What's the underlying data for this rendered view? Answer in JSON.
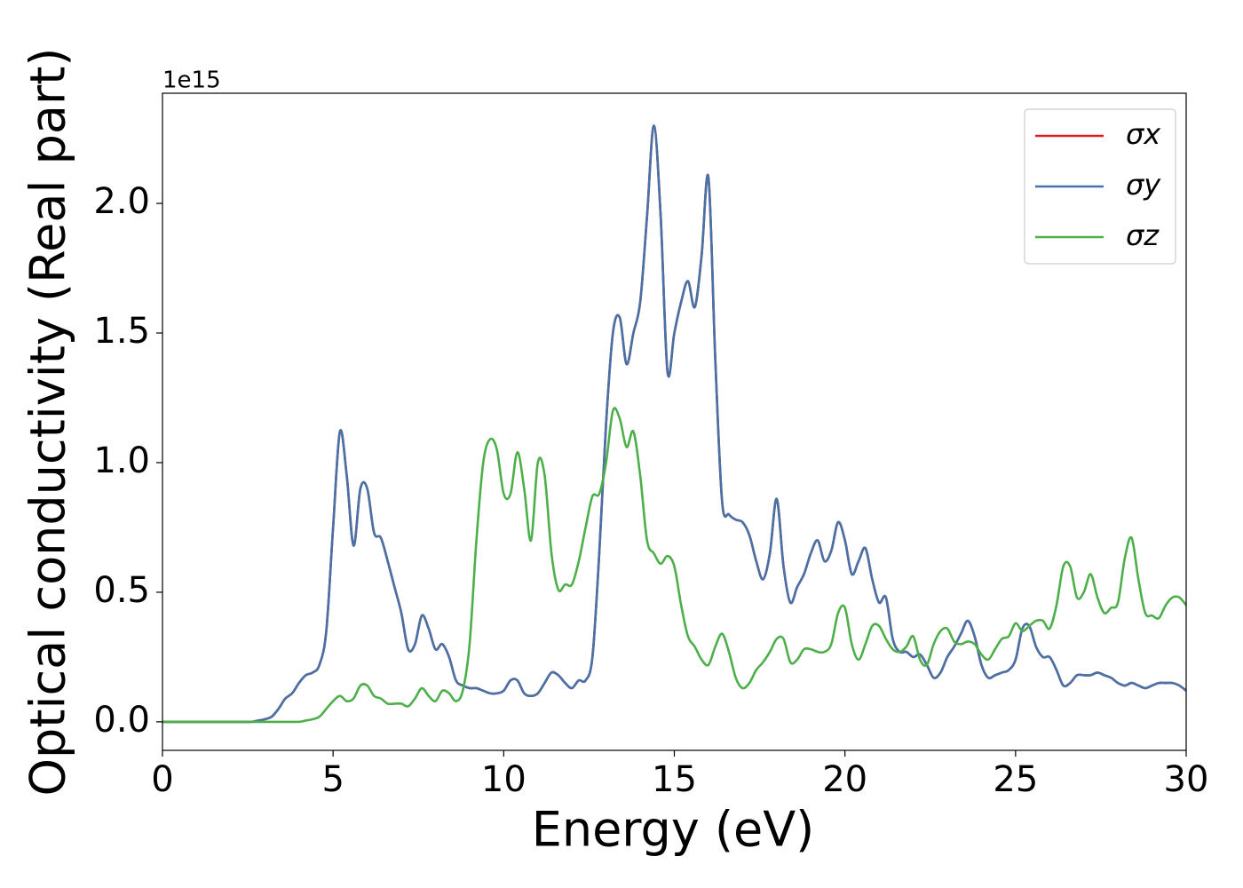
{
  "chart_data": {
    "type": "line",
    "xlabel": "Energy (eV)",
    "ylabel": "Optical conductivity (Real part)",
    "y_offset_label": "1e15",
    "x": [
      0,
      0.2,
      0.4,
      0.6,
      0.8,
      1,
      1.2,
      1.4,
      1.6,
      1.8,
      2,
      2.2,
      2.4,
      2.6,
      2.8,
      3,
      3.2,
      3.4,
      3.6,
      3.8,
      4,
      4.2,
      4.4,
      4.6,
      4.8,
      5,
      5.2,
      5.4,
      5.6,
      5.8,
      6,
      6.2,
      6.4,
      6.6,
      6.8,
      7,
      7.2,
      7.4,
      7.6,
      7.8,
      8,
      8.2,
      8.4,
      8.6,
      8.8,
      9,
      9.2,
      9.4,
      9.6,
      9.8,
      10,
      10.2,
      10.4,
      10.6,
      10.8,
      11,
      11.2,
      11.4,
      11.6,
      11.8,
      12,
      12.2,
      12.4,
      12.6,
      12.8,
      13,
      13.2,
      13.4,
      13.6,
      13.8,
      14,
      14.2,
      14.4,
      14.6,
      14.8,
      15,
      15.2,
      15.4,
      15.6,
      15.8,
      16,
      16.2,
      16.4,
      16.6,
      16.8,
      17,
      17.2,
      17.4,
      17.6,
      17.8,
      18,
      18.2,
      18.4,
      18.6,
      18.8,
      19,
      19.2,
      19.4,
      19.6,
      19.8,
      20,
      20.2,
      20.4,
      20.6,
      20.8,
      21,
      21.2,
      21.4,
      21.6,
      21.8,
      22,
      22.2,
      22.4,
      22.6,
      22.8,
      23,
      23.2,
      23.4,
      23.6,
      23.8,
      24,
      24.2,
      24.4,
      24.6,
      24.8,
      25,
      25.2,
      25.4,
      25.6,
      25.8,
      26,
      26.2,
      26.4,
      26.6,
      26.8,
      27,
      27.2,
      27.4,
      27.6,
      27.8,
      28,
      28.2,
      28.4,
      28.6,
      28.8,
      29,
      29.2,
      29.4,
      29.6,
      29.8,
      30
    ],
    "series": [
      {
        "name": "σx",
        "color": "#e41a1c",
        "values": [
          0,
          0,
          0,
          0,
          0,
          0,
          0,
          0,
          0,
          0,
          0,
          0,
          0,
          0,
          0.005,
          0.01,
          0.02,
          0.05,
          0.09,
          0.11,
          0.15,
          0.18,
          0.19,
          0.22,
          0.35,
          0.75,
          1.12,
          0.95,
          0.68,
          0.9,
          0.9,
          0.73,
          0.71,
          0.62,
          0.52,
          0.42,
          0.28,
          0.3,
          0.41,
          0.36,
          0.28,
          0.3,
          0.25,
          0.16,
          0.14,
          0.13,
          0.13,
          0.12,
          0.11,
          0.11,
          0.12,
          0.16,
          0.16,
          0.11,
          0.1,
          0.11,
          0.15,
          0.19,
          0.18,
          0.15,
          0.13,
          0.16,
          0.16,
          0.25,
          0.65,
          1.15,
          1.5,
          1.56,
          1.38,
          1.5,
          1.62,
          1.95,
          2.3,
          1.95,
          1.35,
          1.5,
          1.62,
          1.7,
          1.6,
          1.8,
          2.1,
          1.4,
          0.85,
          0.8,
          0.78,
          0.77,
          0.72,
          0.62,
          0.55,
          0.65,
          0.86,
          0.6,
          0.46,
          0.52,
          0.57,
          0.65,
          0.7,
          0.62,
          0.66,
          0.77,
          0.7,
          0.57,
          0.62,
          0.67,
          0.55,
          0.46,
          0.48,
          0.32,
          0.27,
          0.27,
          0.25,
          0.26,
          0.22,
          0.17,
          0.19,
          0.25,
          0.29,
          0.34,
          0.39,
          0.33,
          0.22,
          0.17,
          0.18,
          0.19,
          0.2,
          0.24,
          0.36,
          0.37,
          0.29,
          0.25,
          0.25,
          0.2,
          0.14,
          0.15,
          0.18,
          0.18,
          0.18,
          0.19,
          0.18,
          0.17,
          0.15,
          0.14,
          0.15,
          0.14,
          0.13,
          0.14,
          0.15,
          0.15,
          0.15,
          0.14,
          0.12
        ]
      },
      {
        "name": "σy",
        "color": "#4672a8",
        "values": [
          0,
          0,
          0,
          0,
          0,
          0,
          0,
          0,
          0,
          0,
          0,
          0,
          0,
          0,
          0.005,
          0.01,
          0.02,
          0.05,
          0.09,
          0.11,
          0.15,
          0.18,
          0.19,
          0.22,
          0.35,
          0.75,
          1.12,
          0.95,
          0.68,
          0.9,
          0.9,
          0.73,
          0.71,
          0.62,
          0.52,
          0.42,
          0.28,
          0.3,
          0.41,
          0.36,
          0.28,
          0.3,
          0.25,
          0.16,
          0.14,
          0.13,
          0.13,
          0.12,
          0.11,
          0.11,
          0.12,
          0.16,
          0.16,
          0.11,
          0.1,
          0.11,
          0.15,
          0.19,
          0.18,
          0.15,
          0.13,
          0.16,
          0.16,
          0.25,
          0.65,
          1.15,
          1.5,
          1.56,
          1.38,
          1.5,
          1.62,
          1.95,
          2.3,
          1.95,
          1.35,
          1.5,
          1.62,
          1.7,
          1.6,
          1.8,
          2.1,
          1.4,
          0.85,
          0.8,
          0.78,
          0.77,
          0.72,
          0.62,
          0.55,
          0.65,
          0.86,
          0.6,
          0.46,
          0.52,
          0.57,
          0.65,
          0.7,
          0.62,
          0.66,
          0.77,
          0.7,
          0.57,
          0.62,
          0.67,
          0.55,
          0.46,
          0.48,
          0.32,
          0.27,
          0.27,
          0.25,
          0.26,
          0.22,
          0.17,
          0.19,
          0.25,
          0.29,
          0.34,
          0.39,
          0.33,
          0.22,
          0.17,
          0.18,
          0.19,
          0.2,
          0.24,
          0.36,
          0.37,
          0.29,
          0.25,
          0.25,
          0.2,
          0.14,
          0.15,
          0.18,
          0.18,
          0.18,
          0.19,
          0.18,
          0.17,
          0.15,
          0.14,
          0.15,
          0.14,
          0.13,
          0.14,
          0.15,
          0.15,
          0.15,
          0.14,
          0.12
        ]
      },
      {
        "name": "σz",
        "color": "#4daf4a",
        "values": [
          0,
          0,
          0,
          0,
          0,
          0,
          0,
          0,
          0,
          0,
          0,
          0,
          0,
          0,
          0,
          0,
          0,
          0,
          0,
          0,
          0,
          0.005,
          0.01,
          0.02,
          0.05,
          0.08,
          0.1,
          0.08,
          0.09,
          0.14,
          0.14,
          0.1,
          0.09,
          0.07,
          0.07,
          0.07,
          0.06,
          0.09,
          0.13,
          0.1,
          0.08,
          0.12,
          0.11,
          0.08,
          0.12,
          0.3,
          0.7,
          1,
          1.09,
          1.05,
          0.88,
          0.88,
          1.04,
          0.9,
          0.7,
          1,
          0.95,
          0.65,
          0.51,
          0.53,
          0.53,
          0.62,
          0.75,
          0.87,
          0.88,
          1,
          1.2,
          1.17,
          1.06,
          1.12,
          0.95,
          0.7,
          0.65,
          0.61,
          0.64,
          0.6,
          0.45,
          0.33,
          0.29,
          0.24,
          0.22,
          0.29,
          0.34,
          0.27,
          0.17,
          0.13,
          0.15,
          0.2,
          0.23,
          0.27,
          0.32,
          0.32,
          0.23,
          0.24,
          0.28,
          0.28,
          0.27,
          0.27,
          0.3,
          0.42,
          0.44,
          0.3,
          0.24,
          0.3,
          0.37,
          0.37,
          0.32,
          0.28,
          0.27,
          0.29,
          0.33,
          0.24,
          0.22,
          0.3,
          0.35,
          0.36,
          0.31,
          0.3,
          0.31,
          0.3,
          0.26,
          0.24,
          0.28,
          0.32,
          0.33,
          0.38,
          0.35,
          0.37,
          0.39,
          0.39,
          0.36,
          0.45,
          0.6,
          0.6,
          0.48,
          0.5,
          0.57,
          0.48,
          0.42,
          0.44,
          0.46,
          0.63,
          0.71,
          0.55,
          0.42,
          0.41,
          0.4,
          0.45,
          0.48,
          0.48,
          0.45
        ]
      }
    ],
    "xlim": [
      0,
      30
    ],
    "xticks": [
      0,
      5,
      10,
      15,
      20,
      25,
      30
    ],
    "ylim": [
      -0.11,
      2.425
    ],
    "yticks": [
      {
        "value": 0,
        "label": "0.0"
      },
      0.5,
      {
        "value": 1,
        "label": "1.0"
      },
      1.5,
      {
        "value": 2,
        "label": "2.0"
      }
    ],
    "grid": false,
    "legend": "upper right"
  }
}
